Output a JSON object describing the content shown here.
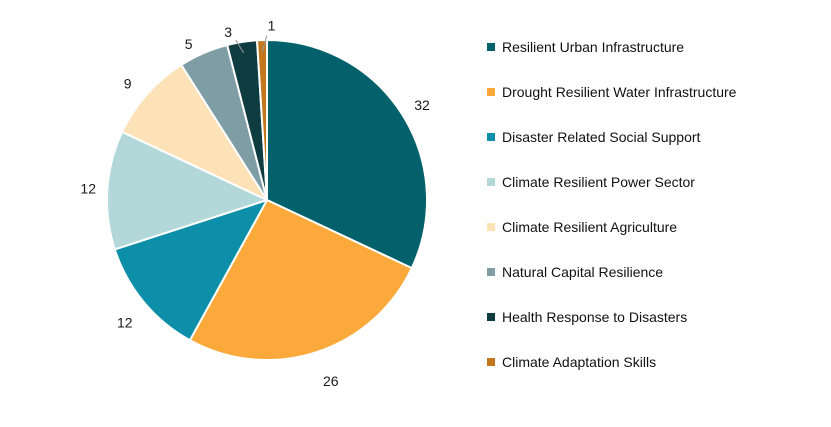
{
  "chart_data": {
    "type": "pie",
    "title": "",
    "categories": [
      "Resilient Urban Infrastructure",
      "Drought Resilient Water Infrastructure",
      "Disaster Related Social Support",
      "Climate Resilient Power Sector",
      "Climate Resilient Agriculture",
      "Natural Capital Resilience",
      "Health Response to Disasters",
      "Climate Adaptation Skills"
    ],
    "values": [
      32,
      26,
      12,
      12,
      9,
      5,
      3,
      1
    ],
    "colors": [
      "#03616B",
      "#FCA93B",
      "#0D8FAA",
      "#B3D8DA",
      "#FCE2B6",
      "#7E9DA5",
      "#0E3C40",
      "#C2771E"
    ],
    "slice_border_color": "#ffffff",
    "label_color": "#1a1a1a",
    "leader_line_color": "#999999",
    "legend_position": "right",
    "start_angle_deg": 0,
    "direction": "clockwise",
    "grid": false
  }
}
